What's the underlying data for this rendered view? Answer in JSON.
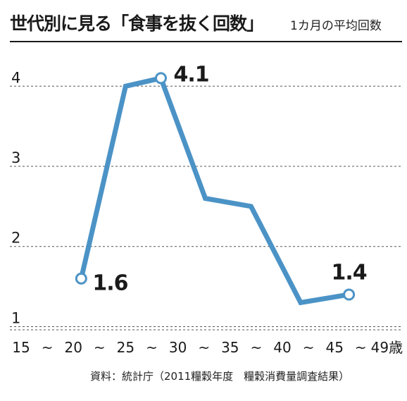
{
  "header": {
    "title": "世代別に見る「食事を抜く回数」",
    "subtitle": "1カ月の平均回数"
  },
  "source": "資料：統計庁（2011糧穀年度　糧穀消費量調査結果）",
  "colors": {
    "line": "#4b93c6",
    "grid": "#555555",
    "text": "#1a1a1a"
  },
  "chart_data": {
    "type": "line",
    "title": "世代別に見る「食事を抜く回数」",
    "subtitle": "1カ月の平均回数",
    "x_tick_labels": [
      "15",
      "~",
      "20",
      "~",
      "25",
      "~",
      "30",
      "~",
      "35",
      "~",
      "40",
      "~",
      "45",
      "~",
      "49歳"
    ],
    "y_ticks": [
      1,
      2,
      3,
      4
    ],
    "ylim": [
      0.96,
      4.02
    ],
    "grid": true,
    "series": [
      {
        "points": [
          {
            "x": "15 ~ 19",
            "y": 1.6
          },
          {
            "x": "20 ~ 24",
            "y": 4.0
          },
          {
            "x": "25 ~ 29",
            "y": 4.1
          },
          {
            "x": "30 ~ 34",
            "y": 2.6
          },
          {
            "x": "35 ~ 39",
            "y": 2.5
          },
          {
            "x": "40 ~ 44",
            "y": 1.3
          },
          {
            "x": "45 ~ 49",
            "y": 1.4
          }
        ]
      }
    ],
    "data_labels": [
      {
        "point_index": 0,
        "text": "1.6"
      },
      {
        "point_index": 2,
        "text": "4.1"
      },
      {
        "point_index": 6,
        "text": "1.4"
      }
    ]
  }
}
